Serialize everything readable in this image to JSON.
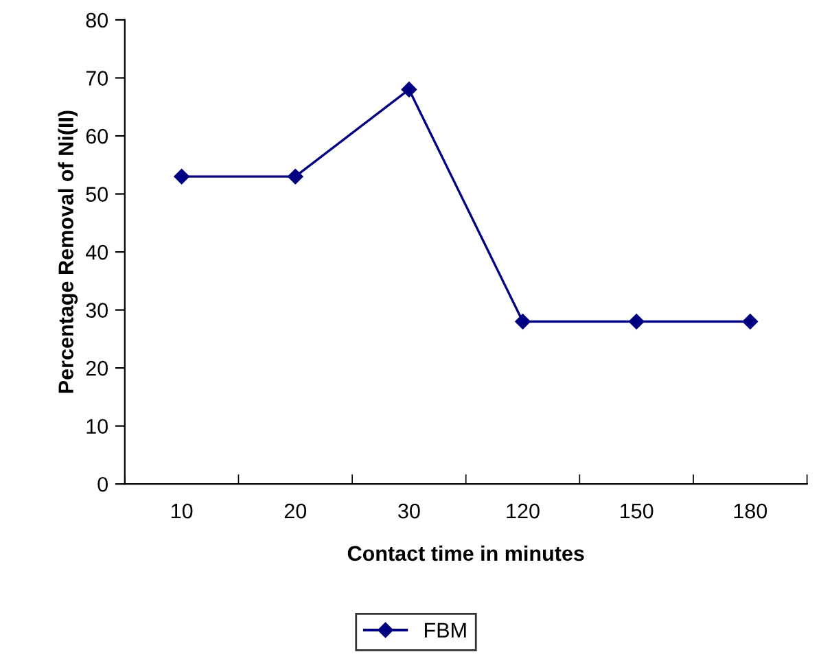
{
  "chart_data": {
    "type": "line",
    "xlabel": "Contact time in minutes",
    "ylabel": "Percentage Removal of Ni(II)",
    "categories": [
      "10",
      "20",
      "30",
      "120",
      "150",
      "180"
    ],
    "series": [
      {
        "name": "FBM",
        "color": "#000080",
        "values": [
          53,
          53,
          68,
          28,
          28,
          28
        ]
      }
    ],
    "ylim": [
      0,
      80
    ],
    "yticks": [
      0,
      10,
      20,
      30,
      40,
      50,
      60,
      70,
      80
    ],
    "marker": "diamond",
    "line_style": "solid",
    "grid": false,
    "legend": "bottom"
  }
}
